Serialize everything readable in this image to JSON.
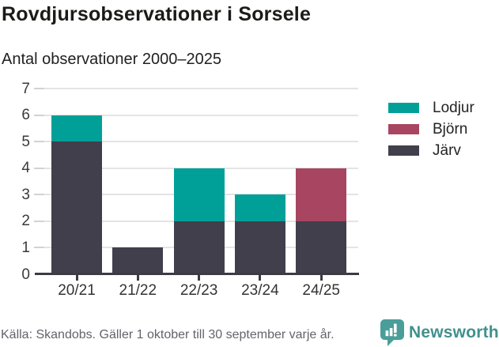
{
  "chart": {
    "title": "Rovdjursobservationer i Sorsele",
    "subtitle": "Antal observationer 2000–2025",
    "source": "Källa: Skandobs. Gäller 1 oktober till 30 september varje år.",
    "brand": "Newsworthy"
  },
  "colors": {
    "lodjur": "#00a099",
    "bjorn": "#a84560",
    "jarv": "#413f4c",
    "grid": "#e4e4e4",
    "axis": "#3b3b44",
    "brand_teal": "#4a9e99",
    "brand_text": "#40918d"
  },
  "chart_data": {
    "type": "bar",
    "stacked": true,
    "title": "Rovdjursobservationer i Sorsele",
    "subtitle": "Antal observationer 2000–2025",
    "categories": [
      "20/21",
      "21/22",
      "22/23",
      "23/24",
      "24/25"
    ],
    "series": [
      {
        "name": "Järv",
        "color": "#413f4c",
        "values": [
          5,
          1,
          2,
          2,
          2
        ]
      },
      {
        "name": "Björn",
        "color": "#a84560",
        "values": [
          0,
          0,
          0,
          0,
          2
        ]
      },
      {
        "name": "Lodjur",
        "color": "#00a099",
        "values": [
          1,
          0,
          2,
          1,
          0
        ]
      }
    ],
    "totals": [
      6,
      1,
      4,
      3,
      4
    ],
    "legend": [
      {
        "label": "Lodjur",
        "color": "#00a099"
      },
      {
        "label": "Björn",
        "color": "#a84560"
      },
      {
        "label": "Järv",
        "color": "#413f4c"
      }
    ],
    "legend_position": "right",
    "xlabel": "",
    "ylabel": "",
    "ylim": [
      0,
      7
    ],
    "yticks": [
      0,
      1,
      2,
      3,
      4,
      5,
      6,
      7
    ],
    "grid": true
  }
}
